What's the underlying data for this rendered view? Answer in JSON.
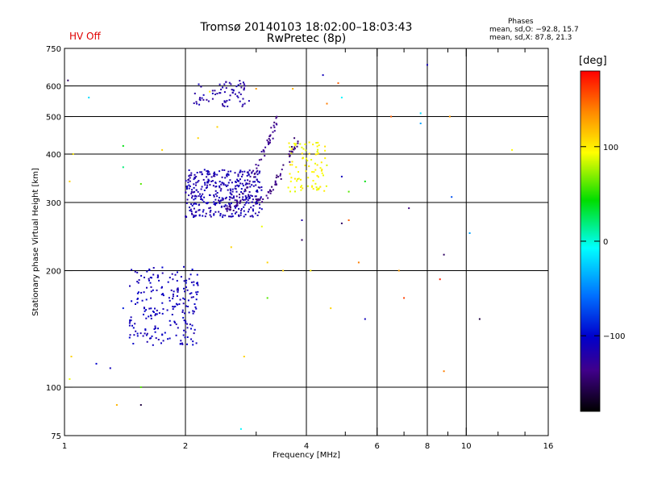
{
  "header": {
    "title_line1": "Tromsø 20140103 18:02:00–18:03:43",
    "title_line2": "RwPretec (8p)",
    "hv_status": "HV Off",
    "hv_color": "#e00000"
  },
  "stats": {
    "title": "Phases",
    "line1": "mean, sd,O: −92.8, 15.7",
    "line2": "mean, sd,X:  87.8, 21.3"
  },
  "colorbar": {
    "unit_label": "[deg]",
    "range": [
      -180,
      180
    ],
    "ticks": [
      {
        "value": 100,
        "label": "100"
      },
      {
        "value": 0,
        "label": "0"
      },
      {
        "value": -100,
        "label": "−100"
      }
    ]
  },
  "chart_data": {
    "type": "scatter",
    "xlabel": "Frequency [MHz]",
    "ylabel": "Stationary phase Virtual Height [km]",
    "x_scale": "log",
    "y_scale": "log",
    "xlim": [
      1,
      16
    ],
    "ylim": [
      75,
      750
    ],
    "grid": true,
    "x_ticks": [
      {
        "value": 1,
        "label": "1"
      },
      {
        "value": 2,
        "label": "2"
      },
      {
        "value": 4,
        "label": "4"
      },
      {
        "value": 6,
        "label": "6"
      },
      {
        "value": 8,
        "label": "8"
      },
      {
        "value": 10,
        "label": "10"
      },
      {
        "value": 16,
        "label": "16"
      }
    ],
    "x_gridlines": [
      2,
      4,
      6,
      8,
      10
    ],
    "x_minor_ticks": [
      3,
      5,
      7,
      9,
      12,
      14
    ],
    "y_ticks": [
      {
        "value": 75,
        "label": "75"
      },
      {
        "value": 100,
        "label": "100"
      },
      {
        "value": 200,
        "label": "200"
      },
      {
        "value": 300,
        "label": "300"
      },
      {
        "value": 400,
        "label": "400"
      },
      {
        "value": 500,
        "label": "500"
      },
      {
        "value": 600,
        "label": "600"
      },
      {
        "value": 750,
        "label": "750"
      }
    ],
    "y_gridlines": [
      100,
      200,
      300,
      400,
      500,
      600
    ],
    "clusters": [
      {
        "desc": "low E-region blue cloud",
        "x_range": [
          1.45,
          2.15
        ],
        "y_range": [
          128,
          205
        ],
        "phase": -110,
        "count": 220
      },
      {
        "desc": "F-layer trace band",
        "x_range": [
          2.0,
          3.1
        ],
        "y_range": [
          275,
          365
        ],
        "phase": -115,
        "count": 380
      },
      {
        "desc": "F-layer upper trace",
        "x_range": [
          2.1,
          2.9
        ],
        "y_range": [
          530,
          620
        ],
        "phase": -120,
        "count": 70
      },
      {
        "desc": "X-mode yellow trace",
        "x_range": [
          3.6,
          4.5
        ],
        "y_range": [
          320,
          430
        ],
        "phase": 95,
        "count": 90
      }
    ],
    "curves": [
      {
        "desc": "dark blue rising O-trace",
        "from": [
          2.5,
          285
        ],
        "to": [
          3.4,
          500
        ],
        "phase": -135,
        "count": 70
      },
      {
        "desc": "dark blue second rising trace",
        "from": [
          3.0,
          300
        ],
        "to": [
          3.8,
          440
        ],
        "phase": -140,
        "count": 50
      }
    ],
    "scatter_points": [
      {
        "x": 1.02,
        "y": 620,
        "phase": -150
      },
      {
        "x": 1.05,
        "y": 400,
        "phase": 100
      },
      {
        "x": 1.03,
        "y": 340,
        "phase": 110
      },
      {
        "x": 1.04,
        "y": 120,
        "phase": 110
      },
      {
        "x": 1.03,
        "y": 105,
        "phase": 90
      },
      {
        "x": 1.15,
        "y": 560,
        "phase": -20
      },
      {
        "x": 1.2,
        "y": 115,
        "phase": -100
      },
      {
        "x": 1.3,
        "y": 112,
        "phase": -110
      },
      {
        "x": 1.4,
        "y": 420,
        "phase": 40
      },
      {
        "x": 1.4,
        "y": 370,
        "phase": 20
      },
      {
        "x": 1.4,
        "y": 160,
        "phase": -90
      },
      {
        "x": 1.35,
        "y": 90,
        "phase": 120
      },
      {
        "x": 1.55,
        "y": 90,
        "phase": -160
      },
      {
        "x": 1.55,
        "y": 100,
        "phase": 60
      },
      {
        "x": 1.55,
        "y": 335,
        "phase": 60
      },
      {
        "x": 1.75,
        "y": 410,
        "phase": 110
      },
      {
        "x": 2.15,
        "y": 440,
        "phase": 110
      },
      {
        "x": 2.3,
        "y": 580,
        "phase": 100
      },
      {
        "x": 2.4,
        "y": 470,
        "phase": 110
      },
      {
        "x": 2.6,
        "y": 230,
        "phase": 110
      },
      {
        "x": 2.75,
        "y": 78,
        "phase": -10
      },
      {
        "x": 2.8,
        "y": 120,
        "phase": 110
      },
      {
        "x": 3.0,
        "y": 590,
        "phase": 130
      },
      {
        "x": 3.1,
        "y": 260,
        "phase": 90
      },
      {
        "x": 3.2,
        "y": 170,
        "phase": 60
      },
      {
        "x": 3.2,
        "y": 210,
        "phase": 110
      },
      {
        "x": 3.5,
        "y": 200,
        "phase": 110
      },
      {
        "x": 3.7,
        "y": 590,
        "phase": 120
      },
      {
        "x": 3.9,
        "y": 270,
        "phase": -120
      },
      {
        "x": 3.9,
        "y": 240,
        "phase": -150
      },
      {
        "x": 4.1,
        "y": 200,
        "phase": 100
      },
      {
        "x": 4.4,
        "y": 640,
        "phase": -110
      },
      {
        "x": 4.5,
        "y": 540,
        "phase": 140
      },
      {
        "x": 4.6,
        "y": 160,
        "phase": 110
      },
      {
        "x": 4.8,
        "y": 610,
        "phase": 150
      },
      {
        "x": 4.9,
        "y": 560,
        "phase": -10
      },
      {
        "x": 4.9,
        "y": 350,
        "phase": -110
      },
      {
        "x": 4.9,
        "y": 265,
        "phase": -150
      },
      {
        "x": 5.1,
        "y": 270,
        "phase": 150
      },
      {
        "x": 5.1,
        "y": 320,
        "phase": 60
      },
      {
        "x": 5.4,
        "y": 210,
        "phase": 140
      },
      {
        "x": 5.6,
        "y": 150,
        "phase": -110
      },
      {
        "x": 5.6,
        "y": 340,
        "phase": 40
      },
      {
        "x": 6.5,
        "y": 500,
        "phase": 150
      },
      {
        "x": 6.8,
        "y": 200,
        "phase": 130
      },
      {
        "x": 7.2,
        "y": 290,
        "phase": -140
      },
      {
        "x": 7.0,
        "y": 170,
        "phase": 160
      },
      {
        "x": 7.7,
        "y": 480,
        "phase": -40
      },
      {
        "x": 7.7,
        "y": 510,
        "phase": -20
      },
      {
        "x": 8.0,
        "y": 680,
        "phase": -110
      },
      {
        "x": 8.6,
        "y": 190,
        "phase": 170
      },
      {
        "x": 8.8,
        "y": 110,
        "phase": 140
      },
      {
        "x": 8.8,
        "y": 220,
        "phase": -150
      },
      {
        "x": 9.1,
        "y": 500,
        "phase": 130
      },
      {
        "x": 9.2,
        "y": 310,
        "phase": -70
      },
      {
        "x": 10.2,
        "y": 250,
        "phase": -40
      },
      {
        "x": 10.8,
        "y": 150,
        "phase": -160
      },
      {
        "x": 13.0,
        "y": 410,
        "phase": 95
      }
    ]
  }
}
